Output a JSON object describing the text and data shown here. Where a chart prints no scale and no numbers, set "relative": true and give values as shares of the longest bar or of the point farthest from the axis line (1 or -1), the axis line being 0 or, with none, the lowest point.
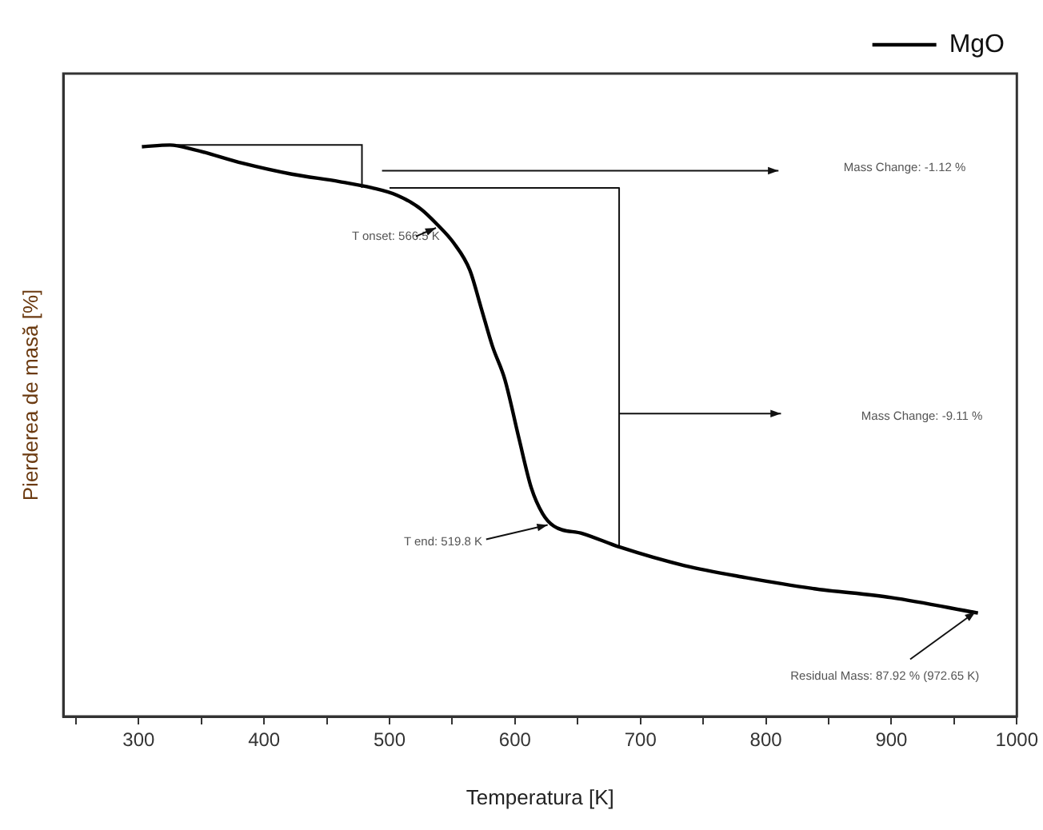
{
  "chart_data": {
    "type": "line",
    "xlabel": "Temperatura [K]",
    "ylabel": "Pierderea de masă [%]",
    "relative": true,
    "legend": "top right",
    "grid": false,
    "marker": "none",
    "line_style": "solid",
    "xlim": [
      240,
      1000
    ],
    "xticks": [
      {
        "value": 250,
        "label": null
      },
      300,
      {
        "value": 350,
        "label": null
      },
      400,
      {
        "value": 450,
        "label": null
      },
      500,
      {
        "value": 550,
        "label": null
      },
      600,
      {
        "value": 650,
        "label": null
      },
      700,
      {
        "value": 750,
        "label": null
      },
      800,
      {
        "value": 850,
        "label": null
      },
      900,
      {
        "value": 950,
        "label": null
      },
      1000
    ],
    "series": [
      {
        "name": "MgO",
        "color": "#000000",
        "x": [
          302.6,
          325,
          344,
          383,
          422,
          460,
          486,
          506,
          525,
          538,
          551,
          564,
          573,
          582,
          592,
          603,
          613,
          622,
          631,
          654,
          684,
          735,
          784,
          837,
          900,
          969
        ],
        "values": [
          0.997,
          1,
          0.992,
          0.968,
          0.949,
          0.936,
          0.925,
          0.912,
          0.888,
          0.861,
          0.829,
          0.781,
          0.715,
          0.648,
          0.589,
          0.488,
          0.4,
          0.355,
          0.333,
          0.32,
          0.296,
          0.264,
          0.243,
          0.224,
          0.208,
          0.181
        ]
      },
      {
        "color": "#111111",
        "x": [
          500,
          683,
          683
        ],
        "values": [
          0.925,
          0.925,
          0.296
        ]
      }
    ],
    "annotations": [
      "Mass Change: -1.12 %",
      "T onset: 566.5 K",
      "Mass Change: -9.11 %",
      "T end: 519.8 K",
      "Residual Mass: 87.92 % (972.65 K)"
    ]
  }
}
